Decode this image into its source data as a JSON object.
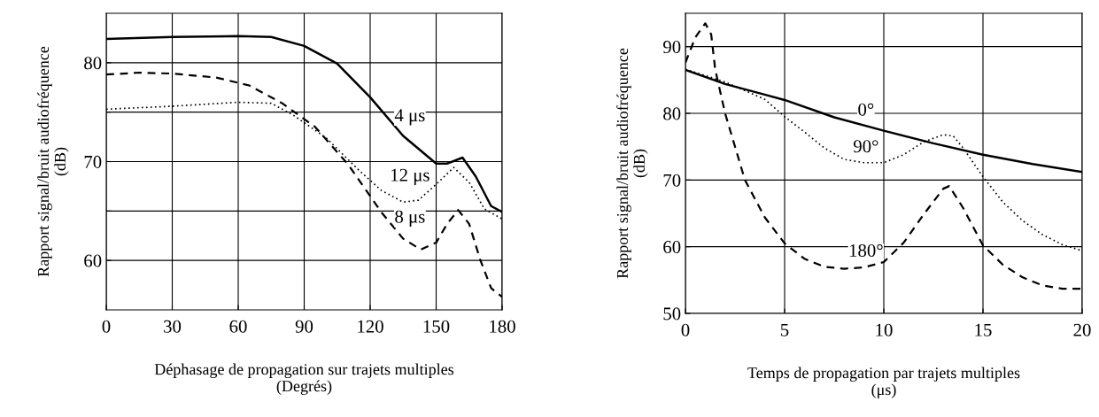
{
  "chart_data": [
    {
      "type": "line",
      "xlabel": "Déphasage de propagation sur trajets multiples\n(Degrés)",
      "ylabel": "Rapport signal/bruit audiofréquence\n(dB)",
      "xlim": [
        0,
        180
      ],
      "xticks": [
        0,
        30,
        60,
        90,
        120,
        150,
        180
      ],
      "ylim": [
        55,
        85
      ],
      "yticks": [
        60,
        {
          "value": 65,
          "label": null
        },
        70,
        {
          "value": 75,
          "label": null
        },
        80
      ],
      "grid": true,
      "legend": false,
      "series": [
        {
          "name": "4 μs",
          "color": "#000000",
          "line_style": "solid",
          "x": [
            0,
            30,
            60,
            75,
            90,
            105,
            120,
            135,
            150,
            155,
            162,
            168,
            175,
            180
          ],
          "values": [
            82.4,
            82.6,
            82.7,
            82.6,
            81.7,
            79.9,
            76.5,
            72.6,
            69.8,
            69.8,
            70.4,
            68.5,
            65.5,
            64.9
          ]
        },
        {
          "name": "8 μs",
          "color": "#000000",
          "line_style": "dashed",
          "x": [
            0,
            15,
            30,
            50,
            65,
            80,
            95,
            110,
            125,
            135,
            143,
            150,
            155,
            160,
            165,
            170,
            175,
            180
          ],
          "values": [
            78.8,
            79.0,
            78.9,
            78.5,
            77.7,
            75.9,
            73.5,
            69.7,
            64.9,
            62.2,
            61.1,
            61.8,
            63.7,
            65.1,
            63.7,
            60.1,
            57.2,
            56.3
          ]
        },
        {
          "name": "12 μs",
          "color": "#000000",
          "line_style": "dotted",
          "x": [
            0,
            30,
            60,
            75,
            85,
            100,
            115,
            125,
            135,
            142,
            150,
            158,
            165,
            172,
            180
          ],
          "values": [
            75.3,
            75.6,
            76.0,
            75.9,
            74.7,
            72.4,
            69.1,
            67.1,
            65.9,
            66.1,
            67.7,
            69.4,
            67.9,
            65.2,
            64.2
          ]
        }
      ]
    },
    {
      "type": "line",
      "xlabel": "Temps de propagation par trajets multiples\n(μs)",
      "ylabel": "Rapport signal/bruit audiofréquence\n(dB)",
      "xlim": [
        0,
        20
      ],
      "xticks": [
        0,
        5,
        10,
        15,
        20
      ],
      "ylim": [
        50,
        95
      ],
      "yticks": [
        50,
        60,
        70,
        80,
        90
      ],
      "grid": true,
      "legend": false,
      "series": [
        {
          "name": "0°",
          "color": "#000000",
          "line_style": "solid",
          "x": [
            0,
            2,
            4,
            5,
            7.5,
            10,
            12.5,
            15,
            17.5,
            20
          ],
          "values": [
            86.5,
            84.4,
            82.8,
            82.0,
            79.4,
            77.4,
            75.5,
            73.8,
            72.4,
            71.2
          ]
        },
        {
          "name": "90°",
          "color": "#000000",
          "line_style": "dotted",
          "x": [
            0,
            2,
            4,
            5,
            6,
            7,
            8,
            9,
            10,
            11,
            12,
            13,
            13.5,
            14,
            15,
            16,
            17,
            18,
            19,
            20
          ],
          "values": [
            86.6,
            84.7,
            82.1,
            79.5,
            77.2,
            74.8,
            73.1,
            72.6,
            72.6,
            73.8,
            75.7,
            76.8,
            76.6,
            74.8,
            70.5,
            66.7,
            63.9,
            61.8,
            60.3,
            59.4
          ]
        },
        {
          "name": "180°",
          "color": "#000000",
          "line_style": "dashed",
          "x": [
            0,
            0.5,
            1,
            1.3,
            1.5,
            2,
            3,
            4,
            5,
            6,
            7,
            8,
            9,
            10,
            11,
            12,
            13,
            13.3,
            14,
            15,
            16,
            17,
            18,
            19,
            20
          ],
          "values": [
            87.6,
            91.4,
            93.5,
            91.8,
            86.6,
            80.0,
            70.0,
            64.4,
            60.5,
            58.2,
            57.0,
            56.7,
            56.9,
            57.7,
            60.6,
            64.8,
            68.7,
            69.1,
            65.8,
            60.2,
            57.3,
            55.4,
            54.2,
            53.7,
            53.7
          ]
        }
      ]
    }
  ]
}
